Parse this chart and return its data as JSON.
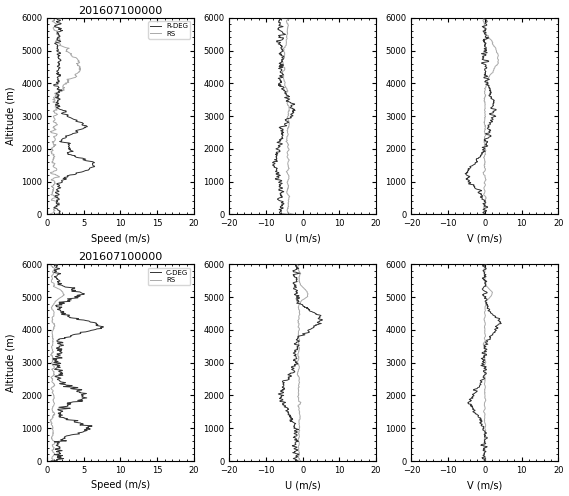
{
  "title": "201607100000",
  "altitude_range": [
    0,
    6000
  ],
  "speed_xlim": [
    0,
    20
  ],
  "u_xlim": [
    -20,
    20
  ],
  "v_xlim": [
    -20,
    20
  ],
  "speed_xticks": [
    0,
    5,
    10,
    15,
    20
  ],
  "u_xticks": [
    -20,
    -10,
    0,
    10,
    20
  ],
  "v_xticks": [
    -20,
    -10,
    0,
    10,
    20
  ],
  "yticks": [
    0,
    1000,
    2000,
    3000,
    4000,
    5000,
    6000
  ],
  "xlabel_speed": "Speed (m/s)",
  "xlabel_u": "U (m/s)",
  "xlabel_v": "V (m/s)",
  "ylabel": "Altitude (m)",
  "legend_rdeg_label": "R-DEG",
  "legend_cdeg_label": "C-DEG",
  "legend_rs_label": "RS",
  "rs_color": "#333333",
  "wpr_color": "#aaaaaa",
  "background_color": "#ffffff",
  "rs_linewidth": 0.7,
  "wpr_linewidth": 0.7,
  "fig_width": 5.69,
  "fig_height": 4.96,
  "dpi": 100,
  "tick_fontsize": 6,
  "label_fontsize": 7,
  "title_fontsize": 8,
  "legend_fontsize": 5
}
